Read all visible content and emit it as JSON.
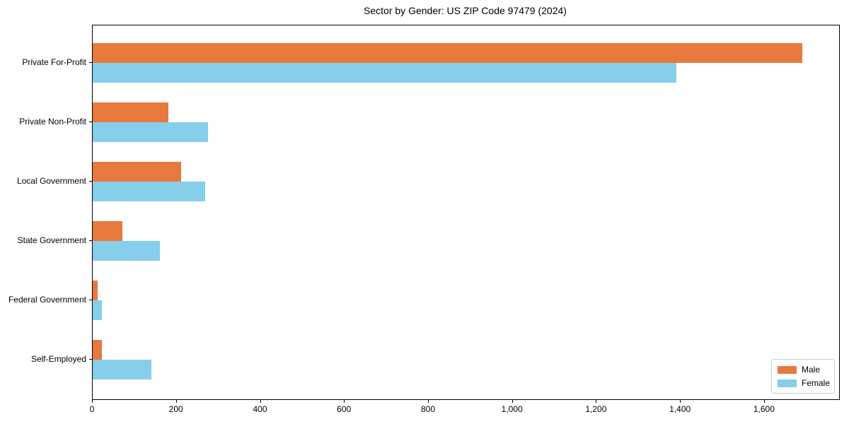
{
  "chart_data": {
    "type": "bar",
    "orientation": "horizontal",
    "title": "Sector by Gender: US ZIP Code 97479 (2024)",
    "categories": [
      "Private For-Profit",
      "Private Non-Profit",
      "Local Government",
      "State Government",
      "Federal Government",
      "Self-Employed"
    ],
    "series": [
      {
        "name": "Male",
        "color": "#E8793D",
        "values": [
          1690,
          180,
          210,
          70,
          12,
          22
        ]
      },
      {
        "name": "Female",
        "color": "#87CEEB",
        "values": [
          1390,
          274,
          268,
          160,
          22,
          140
        ]
      }
    ],
    "xlabel": "",
    "ylabel": "",
    "xlim": [
      0,
      1777
    ],
    "x_tick_values": [
      0,
      200,
      400,
      600,
      800,
      1000,
      1200,
      1400,
      1600
    ],
    "x_tick_labels": [
      "0",
      "200",
      "400",
      "600",
      "800",
      "1,000",
      "1,200",
      "1,400",
      "1,600"
    ],
    "grid": false,
    "legend": {
      "position": "lower right",
      "entries": [
        "Male",
        "Female"
      ]
    },
    "colors": {
      "frame": "#000000",
      "background": "#ffffff",
      "legend_border": "#cccccc",
      "male": "#E8793D",
      "female": "#87CEEB"
    }
  }
}
